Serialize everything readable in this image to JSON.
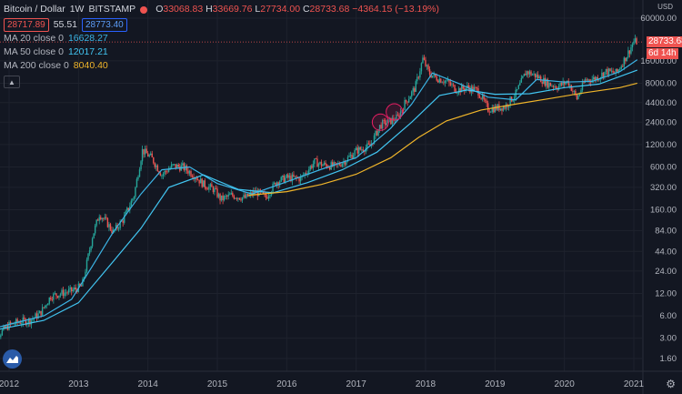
{
  "header": {
    "symbol": "Bitcoin / Dollar",
    "interval": "1W",
    "exchange": "BITSTAMP",
    "open_label": "O",
    "open": "33068.83",
    "high_label": "H",
    "high": "33669.76",
    "low_label": "L",
    "low": "27734.00",
    "close_label": "C",
    "close": "28733.68",
    "change": "−4364.15 (−13.19%)",
    "bid": "28717.89",
    "spread": "55.51",
    "ask": "28773.40"
  },
  "indicators": [
    {
      "label": "MA 20 close 0",
      "value": "16628.27",
      "color": "#3cb4e5"
    },
    {
      "label": "MA 50 close 0",
      "value": "12017.21",
      "color": "#42c6f2"
    },
    {
      "label": "MA 200 close 0",
      "value": "8040.40",
      "color": "#f0b52a"
    }
  ],
  "price_tag": {
    "price": "28733.68",
    "countdown": "6d 14h"
  },
  "chart_data": {
    "type": "candlestick",
    "scale": "log",
    "y_unit": "USD",
    "y_ticks": [
      1.6,
      3.0,
      6.0,
      12.0,
      24.0,
      44.0,
      84.0,
      160.0,
      320.0,
      600.0,
      1200.0,
      2400.0,
      4400.0,
      8000.0,
      16000.0,
      60000.0
    ],
    "y_tick_labels": [
      "1.60",
      "3.00",
      "6.00",
      "12.00",
      "24.00",
      "44.00",
      "84.00",
      "160.00",
      "320.00",
      "600.00",
      "1200.00",
      "2400.00",
      "4400.00",
      "8000.00",
      "16000.00",
      "60000.00"
    ],
    "x_ticks": [
      "2012",
      "2013",
      "2014",
      "2015",
      "2016",
      "2017",
      "2018",
      "2019",
      "2020",
      "2021"
    ],
    "series": [
      {
        "name": "BTCUSD",
        "style": "candles",
        "points": [
          [
            "2011.70",
            2.5
          ],
          [
            "2012.00",
            4.5
          ],
          [
            "2012.15",
            5.0
          ],
          [
            "2012.30",
            5.2
          ],
          [
            "2012.45",
            6.5
          ],
          [
            "2012.60",
            11
          ],
          [
            "2012.75",
            12
          ],
          [
            "2012.90",
            13
          ],
          [
            "2013.05",
            15
          ],
          [
            "2013.20",
            70
          ],
          [
            "2013.30",
            140
          ],
          [
            "2013.40",
            110
          ],
          [
            "2013.50",
            80
          ],
          [
            "2013.65",
            120
          ],
          [
            "2013.80",
            250
          ],
          [
            "2013.92",
            1000
          ],
          [
            "2014.05",
            800
          ],
          [
            "2014.20",
            470
          ],
          [
            "2014.35",
            620
          ],
          [
            "2014.50",
            600
          ],
          [
            "2014.65",
            480
          ],
          [
            "2014.80",
            350
          ],
          [
            "2014.95",
            300
          ],
          [
            "2015.05",
            220
          ],
          [
            "2015.20",
            250
          ],
          [
            "2015.40",
            230
          ],
          [
            "2015.55",
            280
          ],
          [
            "2015.70",
            235
          ],
          [
            "2015.85",
            380
          ],
          [
            "2016.00",
            430
          ],
          [
            "2016.20",
            420
          ],
          [
            "2016.40",
            700
          ],
          [
            "2016.50",
            650
          ],
          [
            "2016.70",
            610
          ],
          [
            "2016.85",
            740
          ],
          [
            "2017.00",
            990
          ],
          [
            "2017.20",
            1150
          ],
          [
            "2017.35",
            2200
          ],
          [
            "2017.50",
            2500
          ],
          [
            "2017.60",
            2800
          ],
          [
            "2017.70",
            4300
          ],
          [
            "2017.85",
            7000
          ],
          [
            "2017.96",
            17000
          ],
          [
            "2018.05",
            11000
          ],
          [
            "2018.15",
            9500
          ],
          [
            "2018.30",
            8500
          ],
          [
            "2018.45",
            6500
          ],
          [
            "2018.60",
            7000
          ],
          [
            "2018.75",
            6400
          ],
          [
            "2018.90",
            3600
          ],
          [
            "2019.00",
            3700
          ],
          [
            "2019.15",
            3900
          ],
          [
            "2019.30",
            5800
          ],
          [
            "2019.45",
            11500
          ],
          [
            "2019.60",
            10000
          ],
          [
            "2019.75",
            8000
          ],
          [
            "2019.90",
            7200
          ],
          [
            "2020.05",
            8500
          ],
          [
            "2020.18",
            5000
          ],
          [
            "2020.30",
            8800
          ],
          [
            "2020.45",
            9300
          ],
          [
            "2020.60",
            11500
          ],
          [
            "2020.75",
            11000
          ],
          [
            "2020.90",
            19000
          ],
          [
            "2021.00",
            29000
          ],
          [
            "2021.05",
            28733.68
          ]
        ]
      },
      {
        "name": "MA 20",
        "style": "line",
        "points": [
          [
            "2011.75",
            4.0
          ],
          [
            "2012.00",
            4.6
          ],
          [
            "2012.50",
            6.0
          ],
          [
            "2012.90",
            10
          ],
          [
            "2013.20",
            28
          ],
          [
            "2013.50",
            80
          ],
          [
            "2013.90",
            260
          ],
          [
            "2014.20",
            550
          ],
          [
            "2014.60",
            600
          ],
          [
            "2015.00",
            360
          ],
          [
            "2015.50",
            260
          ],
          [
            "2016.00",
            380
          ],
          [
            "2016.50",
            560
          ],
          [
            "2017.00",
            800
          ],
          [
            "2017.50",
            2000
          ],
          [
            "2017.80",
            4200
          ],
          [
            "2018.10",
            11000
          ],
          [
            "2018.50",
            7800
          ],
          [
            "2018.90",
            5200
          ],
          [
            "2019.30",
            4800
          ],
          [
            "2019.60",
            9000
          ],
          [
            "2020.00",
            8300
          ],
          [
            "2020.40",
            8500
          ],
          [
            "2020.80",
            11500
          ],
          [
            "2021.05",
            16628.27
          ]
        ]
      },
      {
        "name": "MA 50",
        "style": "line",
        "points": [
          [
            "2011.75",
            3.8
          ],
          [
            "2012.00",
            4.2
          ],
          [
            "2012.50",
            5.2
          ],
          [
            "2013.00",
            9
          ],
          [
            "2013.40",
            25
          ],
          [
            "2013.90",
            90
          ],
          [
            "2014.30",
            320
          ],
          [
            "2014.80",
            470
          ],
          [
            "2015.30",
            300
          ],
          [
            "2015.80",
            270
          ],
          [
            "2016.30",
            370
          ],
          [
            "2016.80",
            550
          ],
          [
            "2017.30",
            950
          ],
          [
            "2017.80",
            2400
          ],
          [
            "2018.20",
            5500
          ],
          [
            "2018.60",
            6500
          ],
          [
            "2019.00",
            5700
          ],
          [
            "2019.50",
            5800
          ],
          [
            "2020.00",
            7000
          ],
          [
            "2020.50",
            7800
          ],
          [
            "2021.05",
            12017.21
          ]
        ]
      },
      {
        "name": "MA 200",
        "style": "line",
        "points": [
          [
            "2015.45",
            250
          ],
          [
            "2016.00",
            280
          ],
          [
            "2016.50",
            350
          ],
          [
            "2017.00",
            480
          ],
          [
            "2017.50",
            800
          ],
          [
            "2017.90",
            1500
          ],
          [
            "2018.30",
            2500
          ],
          [
            "2018.80",
            3500
          ],
          [
            "2019.30",
            4200
          ],
          [
            "2019.80",
            5000
          ],
          [
            "2020.30",
            6000
          ],
          [
            "2020.80",
            7000
          ],
          [
            "2021.05",
            8040.4
          ]
        ]
      }
    ],
    "annotations": [
      {
        "type": "circle",
        "x": "2017.35",
        "y": 2400
      },
      {
        "type": "circle",
        "x": "2017.55",
        "y": 3300
      }
    ],
    "horizontal_line": {
      "y": 28733.68,
      "color": "#ef5350",
      "style": "dotted"
    }
  }
}
